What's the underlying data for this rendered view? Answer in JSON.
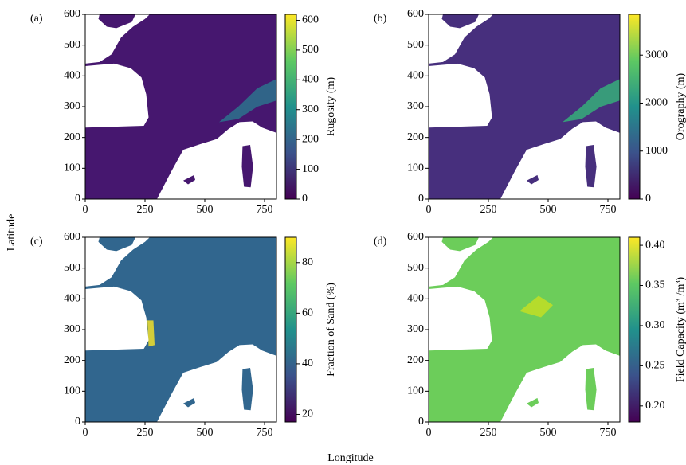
{
  "xlabel": "Longitude",
  "ylabel": "Latitude",
  "chart_data": [
    {
      "type": "heatmap",
      "label": "(a)",
      "colormap": "viridis",
      "colorbar_label": "Rugosity (m)",
      "xlim": [
        0,
        800
      ],
      "xticks": [
        0,
        250,
        500,
        750
      ],
      "ylim": [
        0,
        600
      ],
      "yticks": [
        0,
        100,
        200,
        300,
        400,
        500,
        600
      ],
      "clim": [
        0,
        620
      ],
      "cticks": [
        0,
        100,
        200,
        300,
        400,
        500,
        600
      ]
    },
    {
      "type": "heatmap",
      "label": "(b)",
      "colormap": "viridis",
      "colorbar_label": "Orography (m)",
      "xlim": [
        0,
        800
      ],
      "xticks": [
        0,
        250,
        500,
        750
      ],
      "ylim": [
        0,
        600
      ],
      "yticks": [
        0,
        100,
        200,
        300,
        400,
        500,
        600
      ],
      "clim": [
        0,
        3850
      ],
      "cticks": [
        0,
        1000,
        2000,
        3000
      ]
    },
    {
      "type": "heatmap",
      "label": "(c)",
      "colormap": "viridis",
      "colorbar_label": "Fraction of Sand (%)",
      "xlim": [
        0,
        800
      ],
      "xticks": [
        0,
        250,
        500,
        750
      ],
      "ylim": [
        0,
        600
      ],
      "yticks": [
        0,
        100,
        200,
        300,
        400,
        500,
        600
      ],
      "clim": [
        17,
        90
      ],
      "cticks": [
        20,
        40,
        60,
        80
      ]
    },
    {
      "type": "heatmap",
      "label": "(d)",
      "colormap": "viridis",
      "colorbar_label": "Field Capacity (m³ /m³)",
      "xlim": [
        0,
        800
      ],
      "xticks": [
        0,
        250,
        500,
        750
      ],
      "ylim": [
        0,
        600
      ],
      "yticks": [
        0,
        100,
        200,
        300,
        400,
        500,
        600
      ],
      "clim": [
        0.18,
        0.41
      ],
      "cticks": [
        {
          "value": 0.2,
          "label": "0.20"
        },
        0.25,
        {
          "value": 0.3,
          "label": "0.30"
        },
        0.35,
        {
          "value": 0.4,
          "label": "0.40"
        }
      ]
    }
  ]
}
